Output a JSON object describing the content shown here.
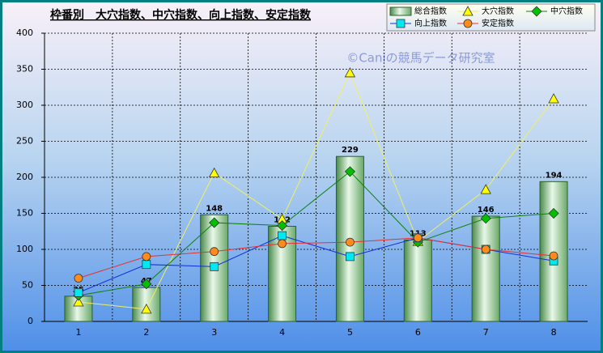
{
  "chart_data": {
    "type": "combo",
    "title": "枠番別　大穴指数、中穴指数、向上指数、安定指数",
    "watermark": "©Caniの競馬データ研究室",
    "categories": [
      "1",
      "2",
      "3",
      "4",
      "5",
      "6",
      "7",
      "8"
    ],
    "ylim": [
      0,
      400
    ],
    "yticks": [
      0,
      50,
      100,
      150,
      200,
      250,
      300,
      350,
      400
    ],
    "grid": true,
    "series": [
      {
        "name": "総合指数",
        "type": "bar",
        "color": "#8fd08f",
        "values": [
          35,
          47,
          148,
          132,
          229,
          113,
          146,
          194
        ]
      },
      {
        "name": "大穴指数",
        "type": "line",
        "marker": "triangle",
        "color": "#ffff00",
        "values": [
          27,
          17,
          206,
          142,
          345,
          111,
          183,
          309
        ]
      },
      {
        "name": "中穴指数",
        "type": "line",
        "marker": "diamond",
        "color": "#00c000",
        "values": [
          36,
          52,
          137,
          133,
          208,
          110,
          143,
          150
        ]
      },
      {
        "name": "向上指数",
        "type": "line",
        "marker": "square",
        "color": "#00e8f0",
        "values": [
          40,
          79,
          76,
          119,
          90,
          116,
          100,
          84
        ]
      },
      {
        "name": "安定指数",
        "type": "line",
        "marker": "circle",
        "color": "#ff8c1a",
        "values": [
          60,
          90,
          97,
          108,
          110,
          116,
          100,
          91
        ]
      }
    ]
  }
}
